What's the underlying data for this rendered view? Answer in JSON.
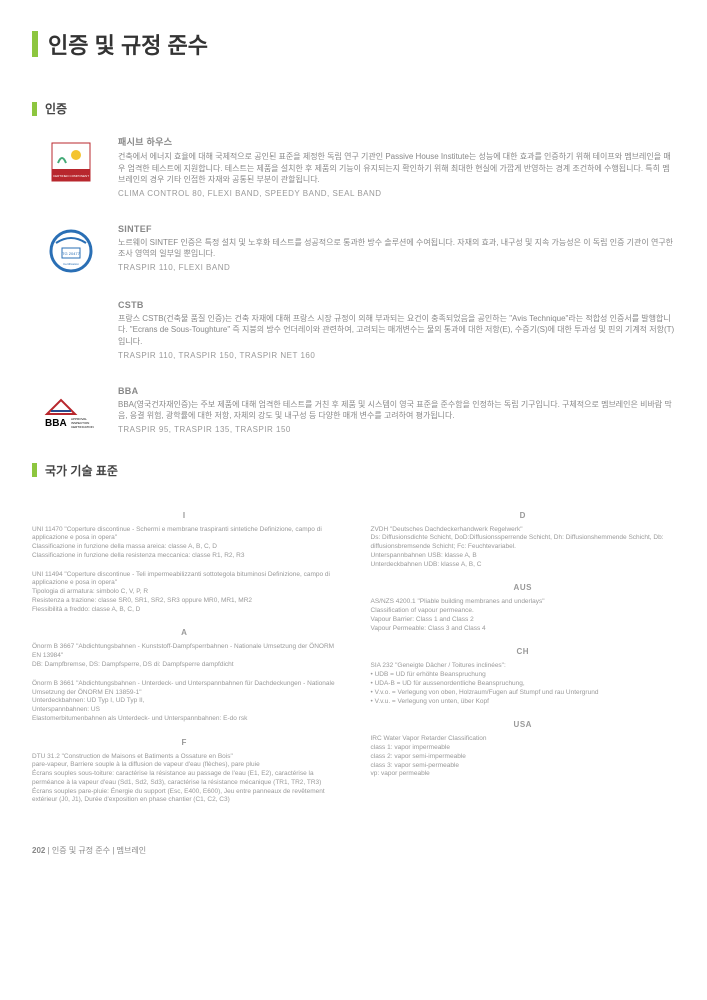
{
  "title": "인증 및 규정 준수",
  "section_cert": "인증",
  "section_std": "국가 기술 표준",
  "certs": [
    {
      "title": "패시브 하우스",
      "desc": "건축에서 에너지 효율에 대해 국제적으로 공인된 표준을 제정한 독립 연구 기관인 Passive House Institute는 성능에 대한 효과를 인증하기 위해 테이프와 멤브레인을 매우 엄격한 테스트에 지원합니다. 테스트는 제품을 설치한 후 제품의 기능이 유지되는지 확인하기 위해 최대한 현실에 가깝게 반영하는 경계 조건하에 수행됩니다. 특히 멤브레인의 경우 기타 인접한 자재와 공통된 부분이 관할됩니다.",
      "products": "CLIMA CONTROL 80, FLEXI BAND, SPEEDY BAND, SEAL BAND"
    },
    {
      "title": "SINTEF",
      "desc": "노르웨이 SINTEF 인증은 특정 설치 및 노후화 테스트를 성공적으로 통과한 방수 솔루션에 수여됩니다. 자재의 효과, 내구성 및 지속 가능성은 이 독립 인증 기관이 연구한 조사 영역의 일부일 뿐입니다.",
      "products": "TRASPIR 110, FLEXI BAND"
    },
    {
      "title": "CSTB",
      "desc": "프랑스 CSTB(건축물 품질 인증)는 건축 자재에 대해 프랑스 시장 규정이 의해 부과되는 요건이 충족되었음을 공인하는 \"Avis Technique\"라는 적합성 인증서를 발행합니다. \"Ecrans de Sous-Toughture\" 즉 지붕의 방수 언더레이와 관련하여, 고려되는 매개변수는 물의 통과에 대한 저항(E), 수증기(S)에 대한 투과성 및 핀의 기계적 저항(T)입니다.",
      "products": "TRASPIR 110, TRASPIR 150, TRASPIR NET 160"
    },
    {
      "title": "BBA",
      "desc": "BBA(영국건자재인증)는 주보 제품에 대해 엄격한 테스트를 거친 후 제품 및 시스템이 영국 표준을 준수함을 인정하는 독립 기구입니다. 구체적으로 멤브레인은 비바람 막음, 응결 위험, 광학률에 대한 저항, 자체의 강도 및 내구성 등 다양한 매개 변수를 고려하여 평가됩니다.",
      "products": "TRASPIR 95, TRASPIR 135, TRASPIR 150"
    }
  ],
  "left_col": [
    {
      "country": "I",
      "paras": [
        "UNI 11470 \"Coperture discontinue - Schermi e membrane traspiranti sintetiche Definizione, campo di applicazione e posa in opera\"\nClassificazione in funzione della massa areica: classe A, B, C, D\nClassificazione in funzione della resistenza meccanica: classe R1, R2, R3",
        "UNI 11494 \"Coperture discontinue - Teli impermeabilizzanti sottotegola bituminosi Definizione, campo di applicazione e posa in opera\"\nTipologia di armatura: simbolo C, V, P, R\nResistenza a trazione: classe SR0, SR1, SR2, SR3 oppure MR0, MR1, MR2\nFlessibilità a freddo: classe A, B, C, D"
      ]
    },
    {
      "country": "A",
      "paras": [
        "Önorm B 3667 \"Abdichtungsbahnen - Kunststoff-Dampfsperrbahnen - Nationale Umsetzung der ÖNORM EN 13984\"\nDB: Dampfbremse, DS: Dampfsperre, DS di: Dampfsperre dampfdicht",
        "Önorm B 3661 \"Abdichtungsbahnen - Unterdeck- und Unterspannbahnen für Dachdeckungen - Nationale Umsetzung der ÖNORM EN 13859-1\"\nUnterdeckbahnen: UD Typ I, UD Typ II,\nUnterspannbahnen: US\nElastomerbitumenbahnen als Unterdeck- und Unterspannbahnen: E-do rsk"
      ]
    },
    {
      "country": "F",
      "paras": [
        "DTU 31.2 \"Construction de Maisons et Batiments a Ossature en Bois\"\npare-vapeur, Barriere souple à la diffusion de vapeur d'eau (flèches), pare pluie\nÉcrans souples sous-toiture: caractérise la résistance au passage de l'eau (E1, E2), caractérise la perméance à la vapeur d'eau (Sd1, Sd2, Sd3), caractérise la résistance mécanique (TR1, TR2, TR3)\nÉcrans souples pare-pluie: Énergie du support (Esc, E400, E600), Jeu entre panneaux de revêtement extérieur (J0, J1), Durée d'exposition en phase chantier (C1, C2, C3)"
      ]
    }
  ],
  "right_col": [
    {
      "country": "D",
      "paras": [
        "ZVDH \"Deutsches Dachdeckerhandwerk Regelwerk\"\nDs: Diffusionsdichte Schicht, DoD:Diffusionssperrende Schicht, Dh: Diffusionshemmende Schicht, Db: diffusionsbremsende Schicht; Fc: Feuchtevariabel.\nUnterspannbahnen USB: klasse A, B\nUnterdeckbahnen UDB: klasse A, B, C"
      ]
    },
    {
      "country": "AUS",
      "paras": [
        "AS/NZS 4200.1 \"Pliable building membranes and underlays\"\nClassification of vapour permeance.\nVapour Barrier: Class 1 and Class 2\nVapour Permeable: Class 3 and Class 4"
      ]
    },
    {
      "country": "CH",
      "paras": [
        "SIA 232 \"Geneigte Dächer / Toitures inclinées\":\n• UDB = UD für erhöhte Beanspruchung\n• UDA-B = UD für aussenordentliche Beanspruchung,\n• V.v.o. = Verlegung von oben, Holzraum/Fugen auf Stumpf und rau Untergrund\n• V.v.u. = Verlegung von unten, über Kopf"
      ]
    },
    {
      "country": "USA",
      "paras": [
        "IRC Water Vapor Retarder Classification\nclass 1: vapor impermeable\nclass 2: vapor semi-impermeable\nclass 3: vapor semi-permeable\nvp: vapor permeable"
      ]
    }
  ],
  "footer": {
    "page": "202",
    "crumb": "인증 및 규정 준수",
    "section": "멤브레인"
  }
}
